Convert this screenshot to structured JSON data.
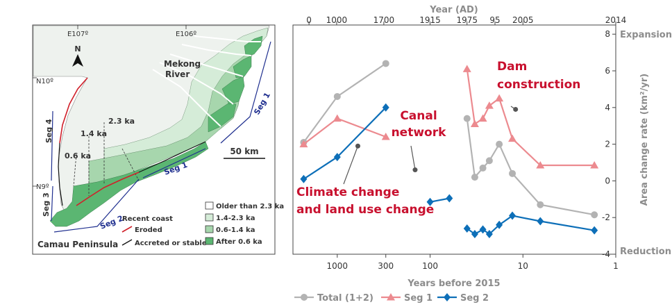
{
  "map": {
    "coords": {
      "lon1": "E107º",
      "lon2": "E106º",
      "lat1": "N10º",
      "lat2": "N9º"
    },
    "north": "N",
    "river": {
      "line1": "Mekong",
      "line2": "River"
    },
    "ages": {
      "a1": "2.3 ka",
      "a2": "1.4 ka",
      "a3": "0.6 ka"
    },
    "segments": {
      "s1a": "Seg 1",
      "s1b": "Seg 1",
      "s2": "Seg 2",
      "s3": "Seg 3",
      "s4": "Seg 4"
    },
    "scale": "50 km",
    "peninsula": "Camau Peninsula",
    "legend": {
      "title": "Recent coast",
      "eroded": "Eroded",
      "accreted": "Accreted or stable",
      "older": "Older than 2.3 ka",
      "a1": "1.4-2.3 ka",
      "a2": "0.6-1.4 ka",
      "a3": "After 0.6 ka"
    },
    "colors": {
      "eroded": "#d0202a",
      "accreted": "#111111",
      "older": "#ffffff",
      "c1": "#d5ecd8",
      "c2": "#a7d6ad",
      "c3": "#5bb672",
      "land": "#eef2ee"
    }
  },
  "chart_data": {
    "type": "line",
    "title": "",
    "xlabel": "Years before 2015",
    "x2label": "Year (AD)",
    "ylabel": "Area change rate (km²/yr)",
    "xscale": "log",
    "x_reversed": true,
    "xlim": [
      1,
      3000
    ],
    "ylim": [
      -4,
      8.5
    ],
    "xticks": [
      1000,
      300,
      100,
      10,
      1
    ],
    "xticklabels": [
      "1000",
      "300",
      "100",
      "10",
      "1"
    ],
    "x2ticks": [
      2015,
      1015,
      315,
      100,
      40,
      20,
      10,
      1
    ],
    "x2ticklabels": [
      "0",
      "1000",
      "1700",
      "1915",
      "1975",
      "95",
      "2005",
      "2014"
    ],
    "yticks": [
      -4,
      -2,
      0,
      2,
      4,
      6,
      8
    ],
    "yticklabels": [
      "-4",
      "-2",
      "0",
      "2",
      "4",
      "6",
      "8"
    ],
    "yannot": {
      "top": "Expansion",
      "bottom": "Reduction"
    },
    "series": [
      {
        "name": "Total (1+2)",
        "color": "#b3b3b3",
        "marker": "circle",
        "segments": [
          [
            [
              2300,
              2.1
            ],
            [
              1000,
              4.6
            ],
            [
              300,
              6.4
            ]
          ],
          [
            [
              40,
              3.4
            ],
            [
              33,
              0.2
            ],
            [
              27,
              0.7
            ],
            [
              23,
              1.1
            ],
            [
              18,
              2.0
            ],
            [
              13,
              0.4
            ],
            [
              6.5,
              -1.3
            ],
            [
              1.7,
              -1.85
            ]
          ]
        ]
      },
      {
        "name": "Seg 1",
        "color": "#ec8a8f",
        "marker": "triangle",
        "segments": [
          [
            [
              2300,
              2.0
            ],
            [
              1000,
              3.4
            ],
            [
              300,
              2.4
            ]
          ],
          [
            [
              40,
              6.1
            ],
            [
              33,
              3.1
            ],
            [
              27,
              3.4
            ],
            [
              23,
              4.1
            ],
            [
              18,
              4.5
            ],
            [
              13,
              2.3
            ],
            [
              6.5,
              0.85
            ],
            [
              1.7,
              0.85
            ]
          ]
        ]
      },
      {
        "name": "Seg 2",
        "color": "#0d6fb8",
        "marker": "diamond",
        "segments": [
          [
            [
              2300,
              0.1
            ],
            [
              1000,
              1.3
            ],
            [
              300,
              4.0
            ]
          ],
          [
            [
              100,
              -1.15
            ],
            [
              62,
              -0.95
            ]
          ],
          [
            [
              40,
              -2.6
            ],
            [
              33,
              -2.9
            ],
            [
              27,
              -2.65
            ],
            [
              23,
              -2.9
            ],
            [
              18,
              -2.4
            ],
            [
              13,
              -1.9
            ],
            [
              6.5,
              -2.2
            ],
            [
              1.7,
              -2.7
            ]
          ]
        ]
      }
    ],
    "annotations": [
      {
        "text": [
          "Dam",
          "construction"
        ],
        "color": "#c8102e",
        "arrow_to": [
          12,
          3.9
        ]
      },
      {
        "text": [
          "Canal",
          "network"
        ],
        "color": "#c8102e",
        "arrow_to": [
          145,
          0.6
        ]
      },
      {
        "text": [
          "Climate change",
          "and land use change"
        ],
        "color": "#c8102e",
        "arrow_to": [
          600,
          1.9
        ]
      }
    ],
    "legend": {
      "placement": "bottom"
    }
  }
}
